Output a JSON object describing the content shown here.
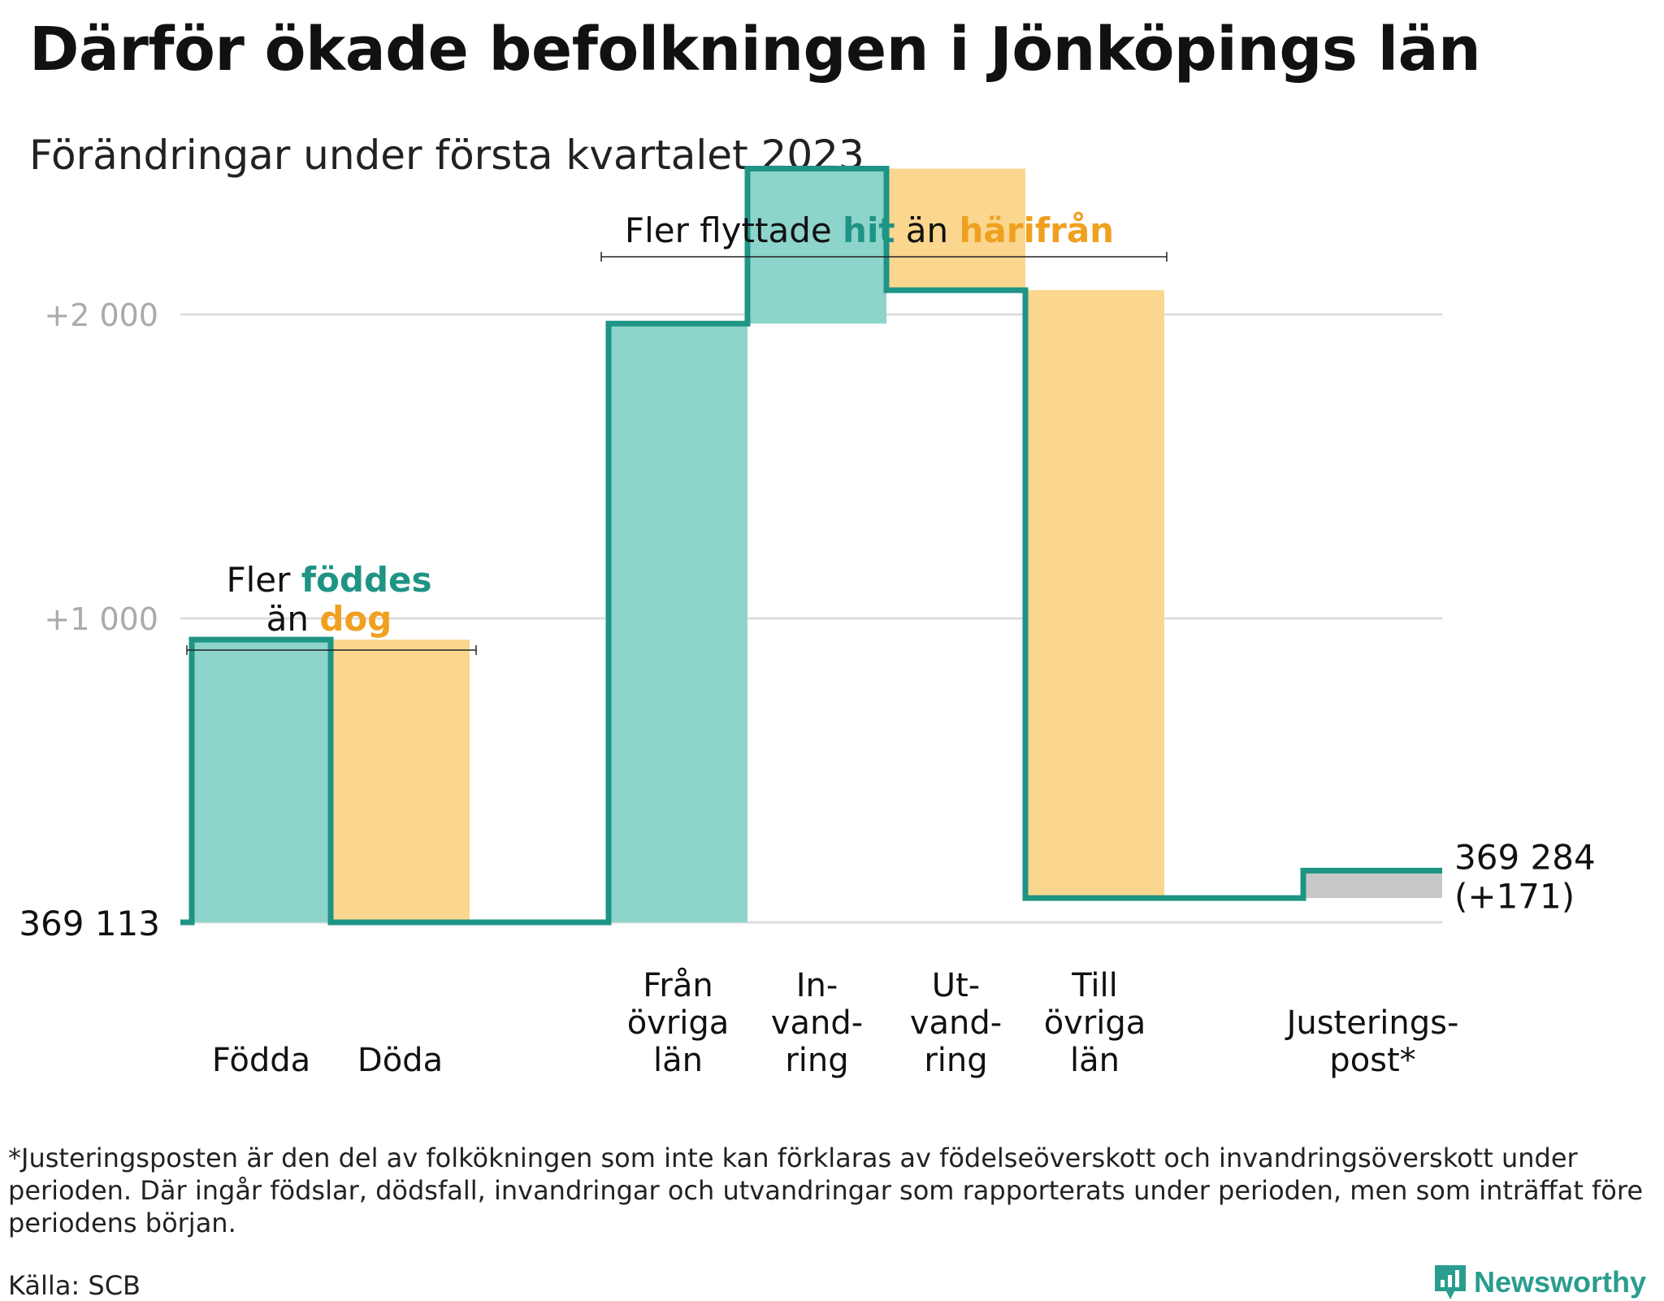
{
  "title": "Därför ökade befolkningen i Jönköpings län",
  "subtitle": "Förändringar under första kvartalet 2023",
  "colors": {
    "increase": "#8dd4cb",
    "decrease": "#fad68e",
    "adjust": "#c8c8c8",
    "line": "#1e9485",
    "accent_orange": "#f0a020",
    "grid": "#dddddd",
    "tick": "#aaaaaa"
  },
  "annotations": {
    "births_line1_prefix": "Fler ",
    "births_line1_em": "föddes",
    "births_line2_prefix": "än ",
    "births_line2_em": "dog",
    "migration_prefix": "Fler flyttade ",
    "migration_em1": "hit",
    "migration_mid": " än ",
    "migration_em2": "härifrån"
  },
  "footnote": "*Justeringsposten är den del av folkökningen som inte kan förklaras av födelseöverskott och invandringsöverskott under perioden. Där ingår födslar, dödsfall, invandringar och utvandringar som rapporterats under perioden, men som inträffat före periodens början.",
  "source": "Källa: SCB",
  "logo": {
    "name": "Newsworthy",
    "icon": "newsworthy-logo-icon"
  },
  "chart_data": {
    "type": "waterfall",
    "start_value": 369113,
    "start_label": "369 113",
    "end_value": 369284,
    "end_label_line1": "369 284",
    "end_label_line2": "(+171)",
    "y_ticks": [
      {
        "value": 0,
        "label": ""
      },
      {
        "value": 1000,
        "label": "+1 000"
      },
      {
        "value": 2000,
        "label": "+2 000"
      }
    ],
    "ylim": [
      0,
      2500
    ],
    "steps": [
      {
        "label_lines": [
          "Födda"
        ],
        "change": 930,
        "kind": "increase"
      },
      {
        "label_lines": [
          "Döda"
        ],
        "change": -930,
        "kind": "decrease"
      },
      {
        "label_lines": [
          ""
        ],
        "change": 0,
        "kind": "gap"
      },
      {
        "label_lines": [
          "Från",
          "övriga",
          "län"
        ],
        "change": 1970,
        "kind": "increase"
      },
      {
        "label_lines": [
          "In-",
          "vand-",
          "ring"
        ],
        "change": 510,
        "kind": "increase"
      },
      {
        "label_lines": [
          "Ut-",
          "vand-",
          "ring"
        ],
        "change": -400,
        "kind": "decrease"
      },
      {
        "label_lines": [
          "Till",
          "övriga",
          "län"
        ],
        "change": -2000,
        "kind": "decrease"
      },
      {
        "label_lines": [
          ""
        ],
        "change": 0,
        "kind": "gap"
      },
      {
        "label_lines": [
          "Justerings-",
          "post*"
        ],
        "change": 90,
        "kind": "adjust"
      }
    ]
  }
}
